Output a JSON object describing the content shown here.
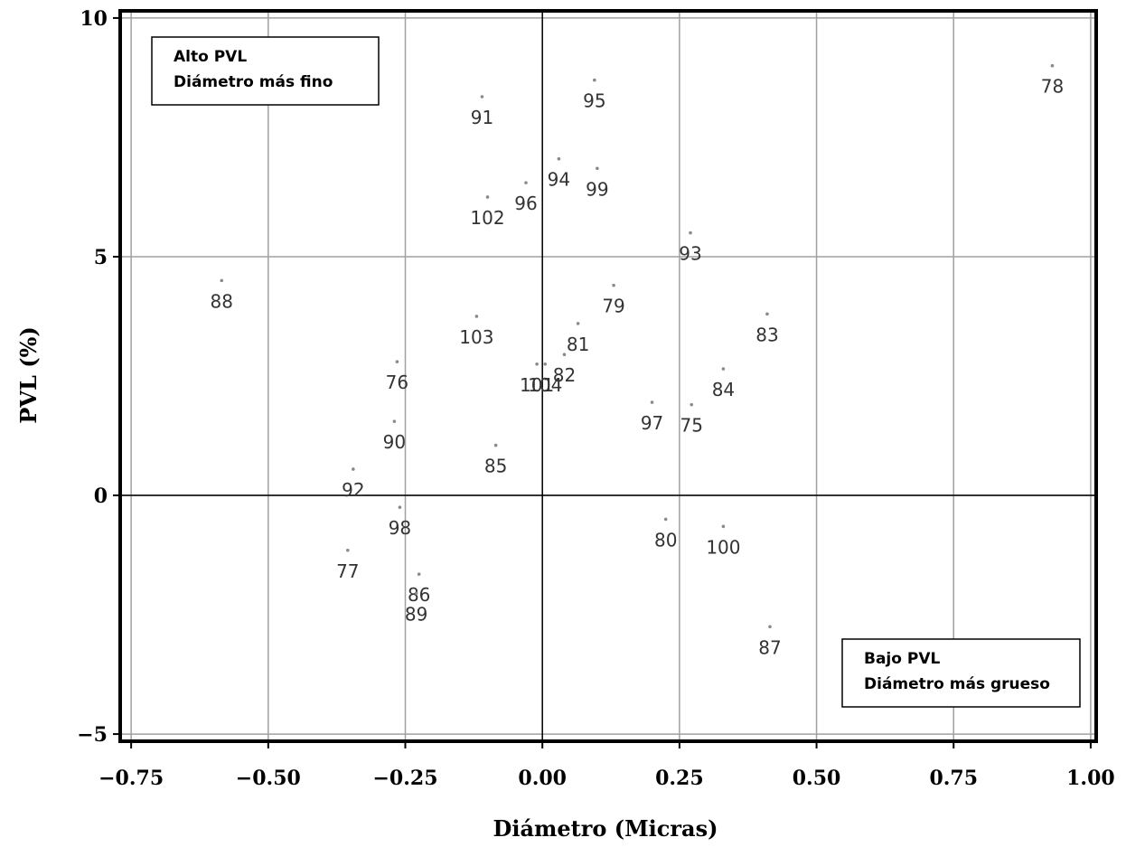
{
  "chart_data": {
    "type": "scatter",
    "xlabel": "Diámetro  (Micras)",
    "ylabel": "PVL  (%)",
    "xlim": [
      -0.77,
      1.01
    ],
    "ylim": [
      -5.15,
      10.15
    ],
    "x_ticks": [
      -0.75,
      -0.5,
      -0.25,
      0.0,
      0.25,
      0.5,
      0.75,
      1.0
    ],
    "x_tick_labels": [
      "−0.75",
      "−0.50",
      "−0.25",
      "0.00",
      "0.25",
      "0.50",
      "0.75",
      "1.00"
    ],
    "y_ticks": [
      -5,
      0,
      5,
      10
    ],
    "y_tick_labels": [
      "−5",
      "0",
      "5",
      "10"
    ],
    "grid": true,
    "reference_lines": {
      "x": 0,
      "y": 0
    },
    "annotations": [
      {
        "lines": [
          "Alto PVL",
          "Diámetro más fino"
        ],
        "position": "top-left"
      },
      {
        "lines": [
          "Bajo PVL",
          "Diámetro más grueso"
        ],
        "position": "bottom-right"
      }
    ],
    "points": [
      {
        "label": "78",
        "x": 0.93,
        "y": 9.0
      },
      {
        "label": "95",
        "x": 0.095,
        "y": 8.7
      },
      {
        "label": "91",
        "x": -0.11,
        "y": 8.35
      },
      {
        "label": "94",
        "x": 0.03,
        "y": 7.05
      },
      {
        "label": "99",
        "x": 0.1,
        "y": 6.85
      },
      {
        "label": "96",
        "x": -0.03,
        "y": 6.55
      },
      {
        "label": "102",
        "x": -0.1,
        "y": 6.25
      },
      {
        "label": "93",
        "x": 0.27,
        "y": 5.5
      },
      {
        "label": "88",
        "x": -0.585,
        "y": 4.5
      },
      {
        "label": "79",
        "x": 0.13,
        "y": 4.4
      },
      {
        "label": "83",
        "x": 0.41,
        "y": 3.8
      },
      {
        "label": "103",
        "x": -0.12,
        "y": 3.75
      },
      {
        "label": "81",
        "x": 0.065,
        "y": 3.6
      },
      {
        "label": "82",
        "x": 0.04,
        "y": 2.95
      },
      {
        "label": "76",
        "x": -0.265,
        "y": 2.8
      },
      {
        "label": "101",
        "x": -0.01,
        "y": 2.75
      },
      {
        "label": "104",
        "x": 0.005,
        "y": 2.75
      },
      {
        "label": "84",
        "x": 0.33,
        "y": 2.65
      },
      {
        "label": "97",
        "x": 0.2,
        "y": 1.95
      },
      {
        "label": "75",
        "x": 0.272,
        "y": 1.9
      },
      {
        "label": "90",
        "x": -0.27,
        "y": 1.55
      },
      {
        "label": "85",
        "x": -0.085,
        "y": 1.05
      },
      {
        "label": "92",
        "x": -0.345,
        "y": 0.55
      },
      {
        "label": "98",
        "x": -0.26,
        "y": -0.25
      },
      {
        "label": "80",
        "x": 0.225,
        "y": -0.5
      },
      {
        "label": "100",
        "x": 0.33,
        "y": -0.65
      },
      {
        "label": "77",
        "x": -0.355,
        "y": -1.15
      },
      {
        "label": "86",
        "x": -0.225,
        "y": -1.65
      },
      {
        "label": "89",
        "x": -0.23,
        "y": -2.05
      },
      {
        "label": "87",
        "x": 0.415,
        "y": -2.75
      }
    ]
  }
}
